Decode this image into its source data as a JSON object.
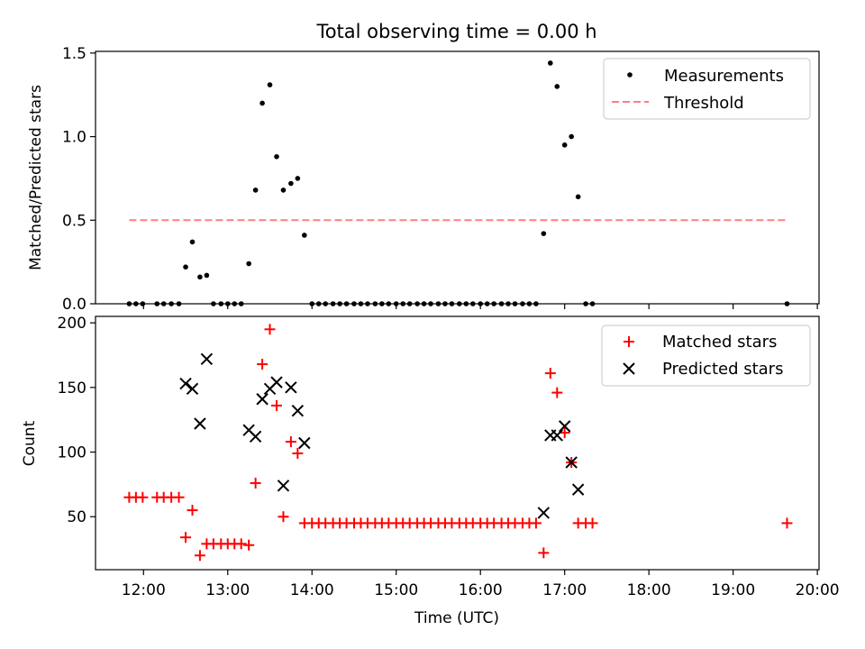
{
  "title": "Total observing time = 0.00 h",
  "colors": {
    "measurements": "#000000",
    "threshold": "#ff7f7f",
    "matched": "#ff0000",
    "predicted": "#000000"
  },
  "chart_data": [
    {
      "type": "scatter",
      "ylabel": "Matched/Predicted stars",
      "xlim": [
        11.43,
        20.02
      ],
      "ylim": [
        0,
        1.51
      ],
      "yticks": [
        "0.0",
        "0.5",
        "1.0",
        "1.5"
      ],
      "ytick_values": [
        0,
        0.5,
        1.0,
        1.5
      ],
      "legend_position": "top-right",
      "legend": [
        "Measurements",
        "Threshold"
      ],
      "series": [
        {
          "name": "Measurements",
          "marker": "dot",
          "x": [
            11.83,
            11.91,
            11.99,
            12.16,
            12.24,
            12.33,
            12.42,
            12.5,
            12.58,
            12.67,
            12.75,
            12.83,
            12.92,
            13.0,
            13.08,
            13.16,
            13.25,
            13.33,
            13.41,
            13.5,
            13.58,
            13.66,
            13.75,
            13.83,
            13.91,
            14.0,
            14.08,
            14.16,
            14.25,
            14.33,
            14.41,
            14.5,
            14.58,
            14.66,
            14.75,
            14.83,
            14.91,
            15.0,
            15.08,
            15.16,
            15.25,
            15.33,
            15.41,
            15.5,
            15.58,
            15.66,
            15.75,
            15.83,
            15.91,
            16.0,
            16.08,
            16.16,
            16.25,
            16.33,
            16.41,
            16.5,
            16.58,
            16.66,
            16.75,
            16.83,
            16.91,
            17.0,
            17.08,
            17.16,
            17.25,
            17.33,
            19.64
          ],
          "y": [
            0,
            0,
            0,
            0,
            0,
            0,
            0,
            0.22,
            0.37,
            0.16,
            0.17,
            0,
            0,
            0,
            0,
            0,
            0.24,
            0.68,
            1.2,
            1.31,
            0.88,
            0.68,
            0.72,
            0.75,
            0.41,
            0,
            0,
            0,
            0,
            0,
            0,
            0,
            0,
            0,
            0,
            0,
            0,
            0,
            0,
            0,
            0,
            0,
            0,
            0,
            0,
            0,
            0,
            0,
            0,
            0,
            0,
            0,
            0,
            0,
            0,
            0,
            0,
            0,
            0.42,
            1.44,
            1.3,
            0.95,
            1.0,
            0.64,
            0,
            0,
            0
          ]
        },
        {
          "name": "Threshold",
          "type": "line",
          "style": "dashed",
          "x": [
            11.83,
            19.64
          ],
          "y": [
            0.5,
            0.5
          ]
        }
      ]
    },
    {
      "type": "scatter",
      "xlabel": "Time (UTC)",
      "ylabel": "Count",
      "xlim": [
        11.43,
        20.02
      ],
      "ylim": [
        9,
        205
      ],
      "xticks": [
        "12:00",
        "13:00",
        "14:00",
        "15:00",
        "16:00",
        "17:00",
        "18:00",
        "19:00",
        "20:00"
      ],
      "xtick_values": [
        12,
        13,
        14,
        15,
        16,
        17,
        18,
        19,
        20
      ],
      "yticks": [
        "50",
        "100",
        "150",
        "200"
      ],
      "ytick_values": [
        50,
        100,
        150,
        200
      ],
      "legend_position": "top-right",
      "legend": [
        "Matched stars",
        "Predicted stars"
      ],
      "series": [
        {
          "name": "Matched stars",
          "marker": "plus",
          "x": [
            11.83,
            11.91,
            11.99,
            12.16,
            12.24,
            12.33,
            12.42,
            12.5,
            12.58,
            12.67,
            12.75,
            12.83,
            12.92,
            13.0,
            13.08,
            13.16,
            13.25,
            13.33,
            13.41,
            13.5,
            13.58,
            13.66,
            13.75,
            13.83,
            13.91,
            14.0,
            14.08,
            14.16,
            14.25,
            14.33,
            14.41,
            14.5,
            14.58,
            14.66,
            14.75,
            14.83,
            14.91,
            15.0,
            15.08,
            15.16,
            15.25,
            15.33,
            15.41,
            15.5,
            15.58,
            15.66,
            15.75,
            15.83,
            15.91,
            16.0,
            16.08,
            16.16,
            16.25,
            16.33,
            16.41,
            16.5,
            16.58,
            16.66,
            16.75,
            16.83,
            16.91,
            17.0,
            17.08,
            17.16,
            17.25,
            17.33,
            19.64
          ],
          "y": [
            65,
            65,
            65,
            65,
            65,
            65,
            65,
            34,
            55,
            20,
            29,
            29,
            29,
            29,
            29,
            29,
            28,
            76,
            168,
            195,
            136,
            50,
            108,
            99,
            45,
            45,
            45,
            45,
            45,
            45,
            45,
            45,
            45,
            45,
            45,
            45,
            45,
            45,
            45,
            45,
            45,
            45,
            45,
            45,
            45,
            45,
            45,
            45,
            45,
            45,
            45,
            45,
            45,
            45,
            45,
            45,
            45,
            45,
            22,
            161,
            146,
            115,
            92,
            45,
            45,
            45,
            45
          ]
        },
        {
          "name": "Predicted stars",
          "marker": "x",
          "x": [
            12.5,
            12.58,
            12.67,
            12.75,
            13.25,
            13.33,
            13.41,
            13.5,
            13.58,
            13.66,
            13.75,
            13.83,
            13.91,
            16.75,
            16.83,
            16.91,
            17.0,
            17.08,
            17.16
          ],
          "y": [
            153,
            149,
            122,
            172,
            117,
            112,
            141,
            149,
            154,
            74,
            150,
            132,
            107,
            53,
            113,
            113,
            120,
            92,
            71
          ]
        }
      ]
    }
  ]
}
